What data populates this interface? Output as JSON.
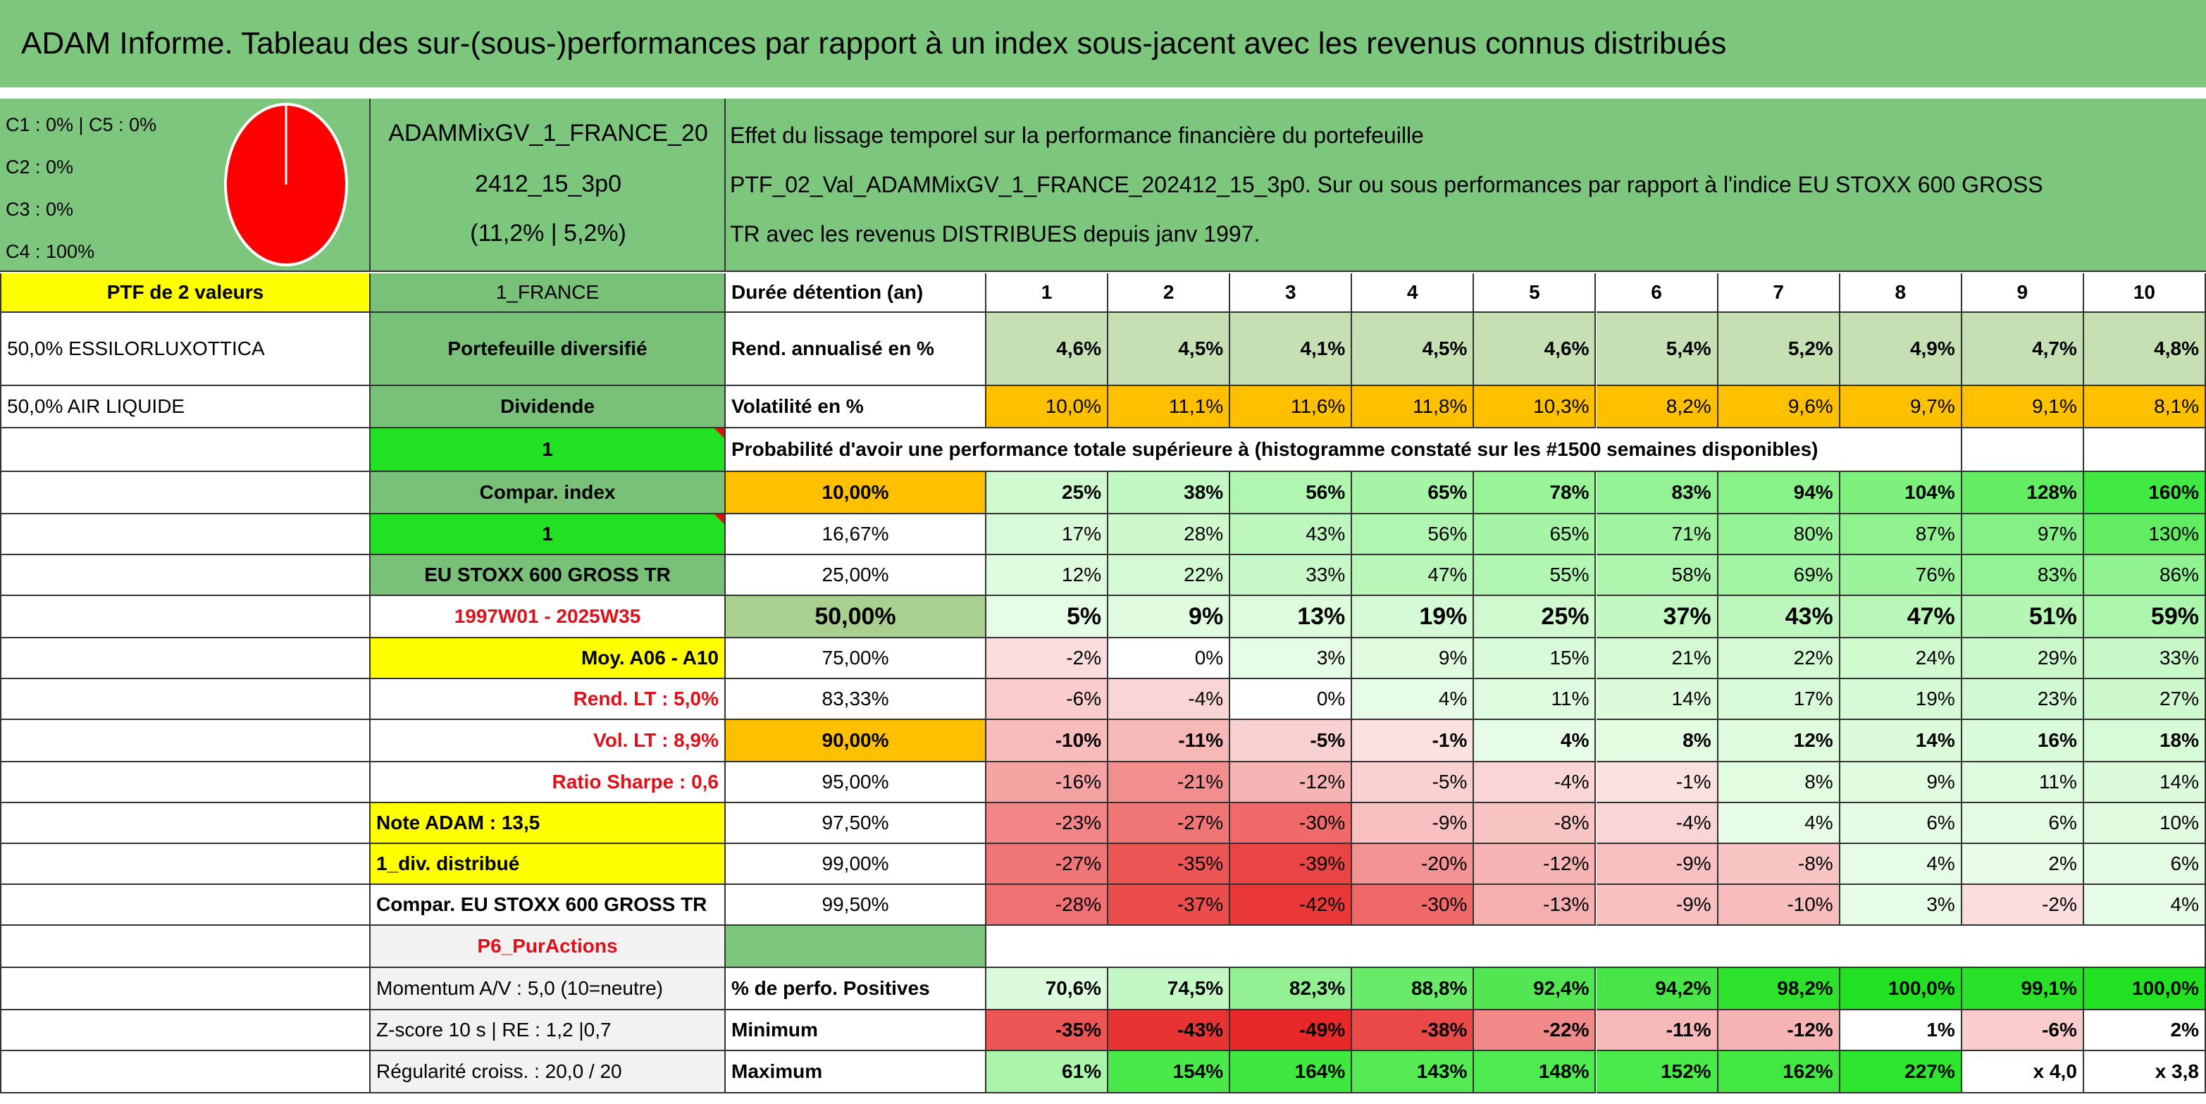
{
  "header": {
    "title": "ADAM Informe. Tableau des sur-(sous-)performances par rapport à un index sous-jacent avec les revenus connus distribués"
  },
  "summary": {
    "classes": [
      "C1 : 0% | C5 : 0%",
      "C2 : 0%",
      "C3 : 0%",
      "C4 : 100%"
    ],
    "portfolio": [
      "ADAMMixGV_1_FRANCE_20",
      "2412_15_3p0",
      "(11,2% | 5,2%)"
    ],
    "description": [
      "Effet du lissage temporel sur la performance financière du portefeuille",
      "PTF_02_Val_ADAMMixGV_1_FRANCE_202412_15_3p0. Sur ou sous performances par rapport à l'indice EU STOXX 600 GROSS",
      "TR avec les revenus DISTRIBUES depuis janv 1997."
    ]
  },
  "grid": {
    "rows": [
      [
        "PTF de 2 valeurs",
        "1_FRANCE",
        "Durée détention (an)",
        "1",
        "2",
        "3",
        "4",
        "5",
        "6",
        "7",
        "8",
        "9",
        "10"
      ],
      [
        "50,0% ESSILORLUXOTTICA",
        "Portefeuille diversifié",
        "Rend. annualisé en %",
        "4,6%",
        "4,5%",
        "4,1%",
        "4,5%",
        "4,6%",
        "5,4%",
        "5,2%",
        "4,9%",
        "4,7%",
        "4,8%"
      ],
      [
        "50,0% AIR LIQUIDE",
        "Dividende",
        "Volatilité en %",
        "10,0%",
        "11,1%",
        "11,6%",
        "11,8%",
        "10,3%",
        "8,2%",
        "9,6%",
        "9,7%",
        "9,1%",
        "8,1%"
      ],
      [
        null,
        "1",
        "Probabilité d'avoir une performance totale supérieure à (histogramme constaté sur les #1500 semaines disponibles)",
        null,
        null,
        null,
        null,
        null,
        null,
        null,
        null,
        null,
        null
      ],
      [
        null,
        "Compar. index",
        "10,00%",
        "25%",
        "38%",
        "56%",
        "65%",
        "78%",
        "83%",
        "94%",
        "104%",
        "128%",
        "160%"
      ],
      [
        null,
        "1",
        "16,67%",
        "17%",
        "28%",
        "43%",
        "56%",
        "65%",
        "71%",
        "80%",
        "87%",
        "97%",
        "130%"
      ],
      [
        null,
        "EU STOXX 600 GROSS TR",
        "25,00%",
        "12%",
        "22%",
        "33%",
        "47%",
        "55%",
        "58%",
        "69%",
        "76%",
        "83%",
        "86%"
      ],
      [
        null,
        "1997W01 - 2025W35",
        "50,00%",
        "5%",
        "9%",
        "13%",
        "19%",
        "25%",
        "37%",
        "43%",
        "47%",
        "51%",
        "59%"
      ],
      [
        null,
        "Moy. A06 - A10",
        "75,00%",
        "-2%",
        "0%",
        "3%",
        "9%",
        "15%",
        "21%",
        "22%",
        "24%",
        "29%",
        "33%"
      ],
      [
        null,
        "Rend. LT : 5,0%",
        "83,33%",
        "-6%",
        "-4%",
        "0%",
        "4%",
        "11%",
        "14%",
        "17%",
        "19%",
        "23%",
        "27%"
      ],
      [
        null,
        "Vol. LT : 8,9%",
        "90,00%",
        "-10%",
        "-11%",
        "-5%",
        "-1%",
        "4%",
        "8%",
        "12%",
        "14%",
        "16%",
        "18%"
      ],
      [
        null,
        "Ratio Sharpe : 0,6",
        "95,00%",
        "-16%",
        "-21%",
        "-12%",
        "-5%",
        "-4%",
        "-1%",
        "8%",
        "9%",
        "11%",
        "14%"
      ],
      [
        null,
        "Note ADAM : 13,5",
        "97,50%",
        "-23%",
        "-27%",
        "-30%",
        "-9%",
        "-8%",
        "-4%",
        "4%",
        "6%",
        "6%",
        "10%"
      ],
      [
        null,
        "1_div. distribué",
        "99,00%",
        "-27%",
        "-35%",
        "-39%",
        "-20%",
        "-12%",
        "-9%",
        "-8%",
        "4%",
        "2%",
        "6%"
      ],
      [
        null,
        "Compar. EU STOXX 600 GROSS TR",
        "99,50%",
        "-28%",
        "-37%",
        "-42%",
        "-30%",
        "-13%",
        "-9%",
        "-10%",
        "3%",
        "-2%",
        "4%"
      ],
      [
        null,
        "P6_PurActions",
        null,
        null,
        null,
        null,
        null,
        null,
        null,
        null,
        null,
        null,
        null
      ],
      [
        null,
        "Momentum A/V : 5,0 (10=neutre)",
        "% de perfo. Positives",
        "70,6%",
        "74,5%",
        "82,3%",
        "88,8%",
        "92,4%",
        "94,2%",
        "98,2%",
        "100,0%",
        "99,1%",
        "100,0%"
      ],
      [
        null,
        "Z-score 10 s | RE : 1,2 |0,7",
        "Minimum",
        "-35%",
        "-43%",
        "-49%",
        "-38%",
        "-22%",
        "-11%",
        "-12%",
        "1%",
        "-6%",
        "2%"
      ],
      [
        null,
        "Régularité croiss. : 20,0 / 20",
        "Maximum",
        "61%",
        "154%",
        "164%",
        "143%",
        "148%",
        "152%",
        "162%",
        "227%",
        "x 4,0",
        "x 3,8"
      ]
    ]
  }
}
